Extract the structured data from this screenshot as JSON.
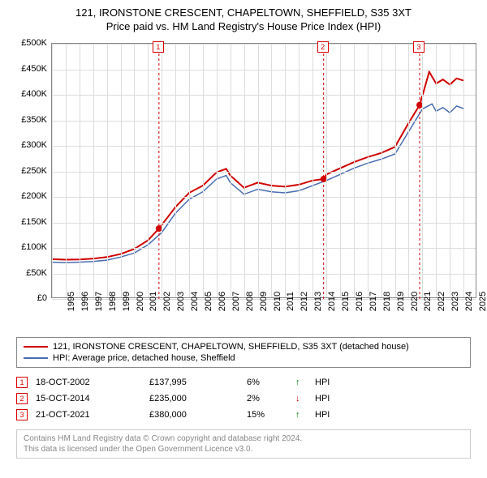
{
  "title": {
    "line1": "121, IRONSTONE CRESCENT, CHAPELTOWN, SHEFFIELD, S35 3XT",
    "line2": "Price paid vs. HM Land Registry's House Price Index (HPI)"
  },
  "chart": {
    "type": "line",
    "background_color": "#ffffff",
    "grid_color": "#dddddd",
    "axis_color": "#888888",
    "ylim": [
      0,
      500000
    ],
    "ytick_step": 50000,
    "ytick_labels": [
      "£0",
      "£50K",
      "£100K",
      "£150K",
      "£200K",
      "£250K",
      "£300K",
      "£350K",
      "£400K",
      "£450K",
      "£500K"
    ],
    "xlim": [
      1995,
      2026
    ],
    "xticks": [
      1995,
      1996,
      1997,
      1998,
      1999,
      2000,
      2001,
      2002,
      2003,
      2004,
      2005,
      2006,
      2007,
      2008,
      2009,
      2010,
      2011,
      2012,
      2013,
      2014,
      2015,
      2016,
      2017,
      2018,
      2019,
      2020,
      2021,
      2022,
      2023,
      2024,
      2025
    ],
    "label_fontsize": 11,
    "series": [
      {
        "name": "121, IRONSTONE CRESCENT, CHAPELTOWN, SHEFFIELD, S35 3XT (detached house)",
        "color": "#d00000",
        "line_width": 2,
        "data": [
          [
            1995,
            78000
          ],
          [
            1996,
            77000
          ],
          [
            1997,
            77500
          ],
          [
            1998,
            79000
          ],
          [
            1999,
            82000
          ],
          [
            2000,
            88000
          ],
          [
            2001,
            98000
          ],
          [
            2002,
            115000
          ],
          [
            2002.8,
            137995
          ],
          [
            2003,
            145000
          ],
          [
            2004,
            180000
          ],
          [
            2005,
            208000
          ],
          [
            2006,
            222000
          ],
          [
            2007,
            248000
          ],
          [
            2007.7,
            255000
          ],
          [
            2008,
            242000
          ],
          [
            2009,
            218000
          ],
          [
            2010,
            228000
          ],
          [
            2011,
            222000
          ],
          [
            2012,
            220000
          ],
          [
            2013,
            224000
          ],
          [
            2014,
            232000
          ],
          [
            2014.8,
            235000
          ],
          [
            2015,
            244000
          ],
          [
            2016,
            256000
          ],
          [
            2017,
            268000
          ],
          [
            2018,
            278000
          ],
          [
            2019,
            286000
          ],
          [
            2020,
            298000
          ],
          [
            2021,
            345000
          ],
          [
            2021.8,
            380000
          ],
          [
            2022,
            398000
          ],
          [
            2022.5,
            445000
          ],
          [
            2023,
            422000
          ],
          [
            2023.5,
            430000
          ],
          [
            2024,
            420000
          ],
          [
            2024.5,
            432000
          ],
          [
            2025,
            428000
          ]
        ]
      },
      {
        "name": "HPI: Average price, detached house, Sheffield",
        "color": "#4a6db0",
        "line_width": 1.5,
        "data": [
          [
            1995,
            72000
          ],
          [
            1996,
            71000
          ],
          [
            1997,
            72000
          ],
          [
            1998,
            73500
          ],
          [
            1999,
            76000
          ],
          [
            2000,
            82000
          ],
          [
            2001,
            90000
          ],
          [
            2002,
            106000
          ],
          [
            2003,
            130000
          ],
          [
            2004,
            168000
          ],
          [
            2005,
            195000
          ],
          [
            2006,
            210000
          ],
          [
            2007,
            235000
          ],
          [
            2007.7,
            242000
          ],
          [
            2008,
            228000
          ],
          [
            2009,
            205000
          ],
          [
            2010,
            215000
          ],
          [
            2011,
            210000
          ],
          [
            2012,
            208000
          ],
          [
            2013,
            212000
          ],
          [
            2014,
            222000
          ],
          [
            2015,
            232000
          ],
          [
            2016,
            244000
          ],
          [
            2017,
            256000
          ],
          [
            2018,
            266000
          ],
          [
            2019,
            274000
          ],
          [
            2020,
            284000
          ],
          [
            2021,
            328000
          ],
          [
            2022,
            372000
          ],
          [
            2022.7,
            382000
          ],
          [
            2023,
            368000
          ],
          [
            2023.5,
            375000
          ],
          [
            2024,
            365000
          ],
          [
            2024.5,
            378000
          ],
          [
            2025,
            373000
          ]
        ]
      }
    ],
    "sale_markers": [
      {
        "idx": "1",
        "x": 2002.8,
        "y": 137995,
        "color": "#d00000"
      },
      {
        "idx": "2",
        "x": 2014.8,
        "y": 235000,
        "color": "#d00000"
      },
      {
        "idx": "3",
        "x": 2021.8,
        "y": 380000,
        "color": "#d00000"
      }
    ],
    "marker_label_top_offset": -2
  },
  "legend": {
    "items": [
      {
        "color": "#d00000",
        "label": "121, IRONSTONE CRESCENT, CHAPELTOWN, SHEFFIELD, S35 3XT (detached house)"
      },
      {
        "color": "#4a6db0",
        "label": "HPI: Average price, detached house, Sheffield"
      }
    ]
  },
  "sales": [
    {
      "idx": "1",
      "date": "18-OCT-2002",
      "price": "£137,995",
      "pct": "6%",
      "arrow": "↑",
      "arrow_color": "#008000",
      "hpi": "HPI"
    },
    {
      "idx": "2",
      "date": "15-OCT-2014",
      "price": "£235,000",
      "pct": "2%",
      "arrow": "↓",
      "arrow_color": "#c00000",
      "hpi": "HPI"
    },
    {
      "idx": "3",
      "date": "21-OCT-2021",
      "price": "£380,000",
      "pct": "15%",
      "arrow": "↑",
      "arrow_color": "#008000",
      "hpi": "HPI"
    }
  ],
  "footer": {
    "line1": "Contains HM Land Registry data © Crown copyright and database right 2024.",
    "line2": "This data is licensed under the Open Government Licence v3.0."
  }
}
